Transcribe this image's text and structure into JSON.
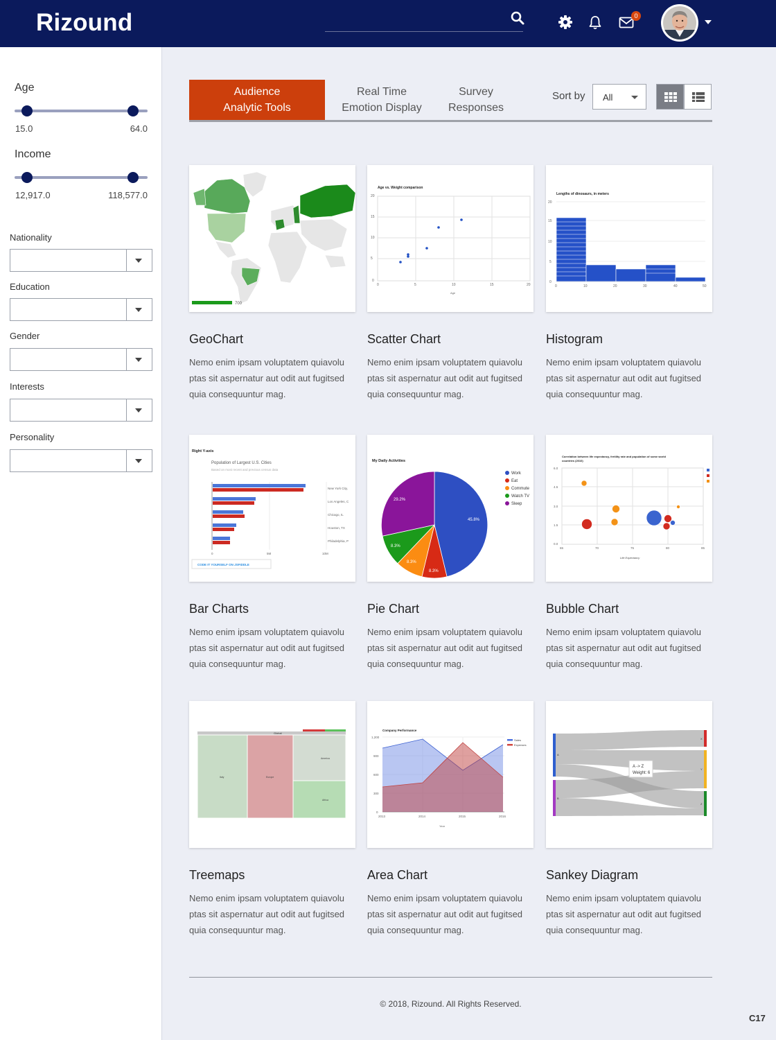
{
  "header": {
    "brand": "Rizound",
    "notification_count": "0"
  },
  "filters": {
    "age": {
      "label": "Age",
      "min": "15.0",
      "max": "64.0"
    },
    "income": {
      "label": "Income",
      "min": "12,917.0",
      "max": "118,577.0"
    },
    "nationality": {
      "label": "Nationality",
      "value": ""
    },
    "education": {
      "label": "Education",
      "value": ""
    },
    "gender": {
      "label": "Gender",
      "value": ""
    },
    "interests": {
      "label": "Interests",
      "value": ""
    },
    "personality": {
      "label": "Personality",
      "value": ""
    }
  },
  "tabs": [
    {
      "line1": "Audience",
      "line2": "Analytic Tools",
      "active": true
    },
    {
      "line1": "Real Time",
      "line2": "Emotion Display",
      "active": false
    },
    {
      "line1": "Survey",
      "line2": "Responses",
      "active": false
    }
  ],
  "sort": {
    "label": "Sort by",
    "value": "All"
  },
  "cards": [
    {
      "title": "GeoChart",
      "description": "Nemo enim ipsam voluptatem quiavolu ptas sit aspernatur aut odit aut fugitsed quia consequuntur mag."
    },
    {
      "title": "Scatter Chart",
      "description": "Nemo enim ipsam voluptatem quiavolu ptas sit aspernatur aut odit aut fugitsed quia consequuntur mag."
    },
    {
      "title": "Histogram",
      "description": "Nemo enim ipsam voluptatem quiavolu ptas sit aspernatur aut odit aut fugitsed quia consequuntur mag."
    },
    {
      "title": "Bar Charts",
      "description": "Nemo enim ipsam voluptatem quiavolu ptas sit aspernatur aut odit aut fugitsed quia consequuntur mag."
    },
    {
      "title": "Pie Chart",
      "description": "Nemo enim ipsam voluptatem quiavolu ptas sit aspernatur aut odit aut fugitsed quia consequuntur mag."
    },
    {
      "title": "Bubble Chart",
      "description": "Nemo enim ipsam voluptatem quiavolu ptas sit aspernatur aut odit aut fugitsed quia consequuntur mag."
    },
    {
      "title": "Treemaps",
      "description": "Nemo enim ipsam voluptatem quiavolu ptas sit aspernatur aut odit aut fugitsed quia consequuntur mag."
    },
    {
      "title": "Area Chart",
      "description": "Nemo enim ipsam voluptatem quiavolu ptas sit aspernatur aut odit aut fugitsed quia consequuntur mag."
    },
    {
      "title": "Sankey Diagram",
      "description": "Nemo enim ipsam voluptatem quiavolu ptas sit aspernatur aut odit aut fugitsed quia consequuntur mag."
    }
  ],
  "thumbnails": {
    "geo": {
      "legend_max": "700"
    },
    "scatter": {
      "title": "Age vs. Weight comparison",
      "xlabel": "Age",
      "yticks": [
        "20",
        "15",
        "10",
        "5",
        "0"
      ],
      "xticks": [
        "0",
        "5",
        "10",
        "15",
        "20"
      ]
    },
    "histogram": {
      "title": "Lengths of dinosaurs, in meters",
      "yticks": [
        "20",
        "15",
        "10",
        "5",
        "0"
      ],
      "xticks": [
        "0",
        "10",
        "20",
        "30",
        "40",
        "50"
      ]
    },
    "bar": {
      "title": "Right Y-axis",
      "subtitle": "Population of Largest U.S. Cities",
      "note": "Based on most recent and previous census data",
      "cities": [
        "New York City,",
        "Los Angeles, C",
        "Chicago, IL",
        "Houston, TX",
        "Philadelphia, P"
      ],
      "xticks": [
        "0",
        "5M",
        "10M"
      ],
      "link": "CODE IT YOURSELF ON JSFIDDLE"
    },
    "pie": {
      "title": "My Daily Activities",
      "legend": [
        "Work",
        "Eat",
        "Commute",
        "Watch TV",
        "Sleep"
      ],
      "labels": [
        "45.8%",
        "8.3%",
        "8.3%",
        "8.3%",
        "29.2%"
      ]
    },
    "bubble": {
      "title_line1": "Correlation between life expectancy, fertility rate and population of some world",
      "title_line2": "countries (2010)",
      "xlabel": "Life Expectancy",
      "yticks": [
        "6.0",
        "4.5",
        "3.0",
        "1.5",
        "0.0"
      ],
      "xticks": [
        "65",
        "70",
        "75",
        "80",
        "85"
      ]
    },
    "treemap": {
      "root": "Global",
      "labels": [
        "Italy",
        "Europe",
        "America",
        "Africa"
      ]
    },
    "area": {
      "title": "Company Performance",
      "legend": [
        "Sales",
        "Expenses"
      ],
      "yticks": [
        "1,200",
        "900",
        "600",
        "300",
        "0"
      ],
      "xticks": [
        "2013",
        "2014",
        "2015",
        "2016"
      ],
      "xlabel": "Year"
    },
    "sankey": {
      "tooltip_line1": "A -> Z",
      "tooltip_line2": "Weight: 6",
      "sources": [
        "A",
        "B"
      ],
      "targets": [
        "X",
        "Y",
        "Z"
      ]
    }
  },
  "footer": {
    "copyright": "© 2018, Rizound. All Rights Reserved.",
    "page_code": "C17"
  },
  "colors": {
    "header_bg": "#0b1a5c",
    "accent": "#cc3f0c",
    "page_bg": "#eceef5"
  }
}
